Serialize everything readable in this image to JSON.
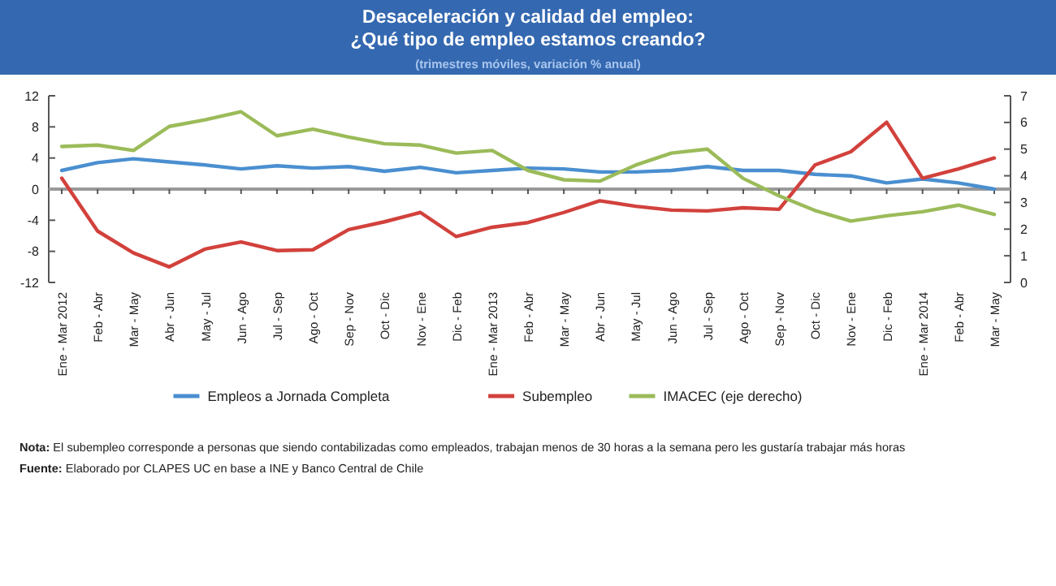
{
  "chart_data": {
    "type": "line",
    "title": "Desaceleración y calidad del empleo:\n¿Qué tipo de empleo estamos creando?",
    "subtitle": "(trimestres móviles, variación % anual)",
    "categories": [
      "Ene - Mar 2012",
      "Feb - Abr",
      "Mar - May",
      "Abr - Jun",
      "May - Jul",
      "Jun - Ago",
      "Jul - Sep",
      "Ago - Oct",
      "Sep - Nov",
      "Oct - Dic",
      "Nov - Ene",
      "Dic - Feb",
      "Ene - Mar 2013",
      "Feb - Abr",
      "Mar - May",
      "Abr - Jun",
      "May - Jul",
      "Jun - Ago",
      "Jul - Sep",
      "Ago - Oct",
      "Sep - Nov",
      "Oct - Dic",
      "Nov - Ene",
      "Dic - Feb",
      "Ene - Mar 2014",
      "Feb - Abr",
      "Mar - May"
    ],
    "series": [
      {
        "name": "Empleos a Jornada Completa",
        "color": "#4a8fd0",
        "values": [
          2.4,
          3.4,
          3.9,
          3.5,
          3.1,
          2.6,
          3.0,
          2.7,
          2.9,
          2.3,
          2.8,
          2.1,
          2.4,
          2.7,
          2.6,
          2.2,
          2.2,
          2.4,
          2.9,
          2.4,
          2.4,
          1.9,
          1.7,
          0.8,
          1.3,
          0.8,
          0.0
        ]
      },
      {
        "name": "Subempleo",
        "color": "#d2413c",
        "values": [
          1.4,
          -5.4,
          -8.2,
          -10,
          -7.7,
          -6.8,
          -7.9,
          -7.8,
          -5.2,
          -4.2,
          -3.0,
          -6.1,
          -4.9,
          -4.3,
          -3.0,
          -1.5,
          -2.2,
          -2.7,
          -2.8,
          -2.4,
          -2.6,
          3.1,
          4.8,
          8.6,
          1.4,
          2.6,
          4.0
        ]
      },
      {
        "name": "IMACEC (eje derecho)",
        "color": "#9bbb59",
        "axis": "y2",
        "values": [
          5.1,
          5.15,
          4.95,
          5.85,
          6.1,
          6.4,
          5.5,
          5.75,
          5.45,
          5.2,
          5.15,
          4.85,
          4.95,
          4.2,
          3.85,
          3.8,
          4.4,
          4.85,
          5.0,
          3.9,
          3.25,
          2.7,
          2.3,
          2.5,
          2.65,
          2.9,
          2.55
        ]
      }
    ],
    "ylim": [
      -12,
      12
    ],
    "yticks": [
      -12,
      -8,
      -4,
      0,
      4,
      8,
      12
    ],
    "y2lim": [
      0,
      7
    ],
    "y2ticks": [
      0,
      1,
      2,
      3,
      4,
      5,
      6,
      7
    ],
    "ref_lines": [
      {
        "axis": "y",
        "value": 0,
        "color": "#999999"
      }
    ],
    "legend": "bottom",
    "line_style": "solid",
    "marker": "none",
    "annotations": [
      "Nota: El subempleo corresponde a personas que siendo contabilizadas como empleados, trabajan menos de 30 horas a la semana pero les gustaría trabajar más horas",
      "Fuente: Elaborado por CLAPES UC en base a INE y Banco Central de Chile"
    ]
  }
}
